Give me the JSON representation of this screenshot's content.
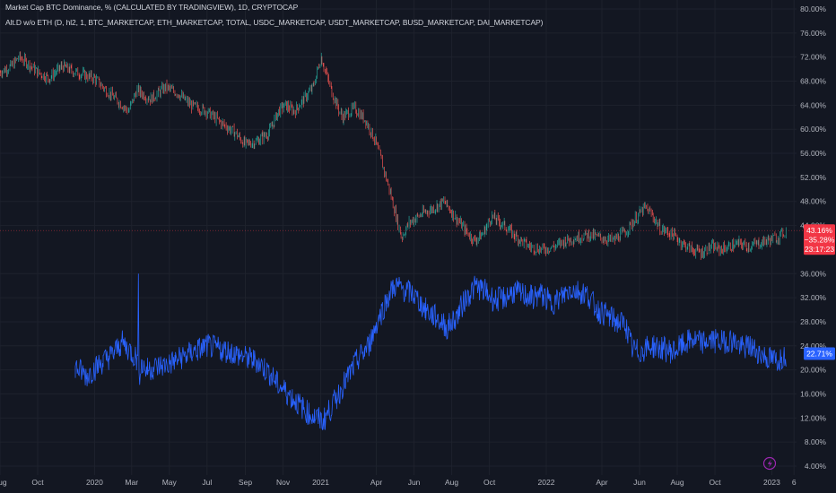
{
  "legend": {
    "line1": "Market Cap BTC Dominance, % (CALCULATED BY TRADINGVIEW), 1D, CRYPTOCAP",
    "line2": "Alt.D w/o ETH (D, hl2, 1, BTC_MARKETCAP, ETH_MARKETCAP, TOTAL, USDC_MARKETCAP, USDT_MARKETCAP, BUSD_MARKETCAP, DAI_MARKETCAP)"
  },
  "price_badge": {
    "value": "43.16%",
    "change": "−35.28%",
    "countdown": "23:17:23"
  },
  "indicator_badge": {
    "value": "22.71%"
  },
  "colors": {
    "background": "#131722",
    "grid": "#1e222d",
    "up_candle": "#26a69a",
    "down_candle": "#ef5350",
    "indicator": "#2962ff",
    "price_badge": "#f23645",
    "indicator_badge": "#2962ff",
    "axis_text": "#b2b5be",
    "lightning_icon": "#9c27b0"
  },
  "chart_data": [
    {
      "type": "candlestick",
      "name": "Market Cap BTC Dominance, %",
      "x_type": "date",
      "x_range": [
        "2019-08-01",
        "2023-02-10"
      ],
      "ylim": [
        4,
        80
      ],
      "y_unit": "%",
      "grid": true,
      "points": [
        [
          "2019-08-01",
          69.5
        ],
        [
          "2019-08-20",
          70.5
        ],
        [
          "2019-09-01",
          72.0
        ],
        [
          "2019-09-15",
          71.0
        ],
        [
          "2019-10-01",
          69.5
        ],
        [
          "2019-10-20",
          68.5
        ],
        [
          "2019-11-10",
          70.5
        ],
        [
          "2019-12-01",
          69.5
        ],
        [
          "2020-01-01",
          68.5
        ],
        [
          "2020-01-20",
          66.5
        ],
        [
          "2020-02-10",
          64.5
        ],
        [
          "2020-02-25",
          63.0
        ],
        [
          "2020-03-10",
          66.5
        ],
        [
          "2020-04-01",
          65.0
        ],
        [
          "2020-04-25",
          67.0
        ],
        [
          "2020-05-15",
          66.0
        ],
        [
          "2020-06-05",
          64.0
        ],
        [
          "2020-07-01",
          63.0
        ],
        [
          "2020-07-25",
          61.0
        ],
        [
          "2020-08-15",
          59.5
        ],
        [
          "2020-09-01",
          57.5
        ],
        [
          "2020-09-20",
          58.0
        ],
        [
          "2020-10-10",
          59.5
        ],
        [
          "2020-10-25",
          63.0
        ],
        [
          "2020-11-05",
          64.0
        ],
        [
          "2020-11-20",
          63.0
        ],
        [
          "2020-12-05",
          65.0
        ],
        [
          "2020-12-20",
          67.0
        ],
        [
          "2021-01-02",
          72.0
        ],
        [
          "2021-01-08",
          70.0
        ],
        [
          "2021-01-20",
          66.0
        ],
        [
          "2021-02-05",
          62.0
        ],
        [
          "2021-02-25",
          63.5
        ],
        [
          "2021-03-15",
          61.5
        ],
        [
          "2021-03-31",
          58.0
        ],
        [
          "2021-04-20",
          51.0
        ],
        [
          "2021-05-05",
          45.0
        ],
        [
          "2021-05-12",
          42.0
        ],
        [
          "2021-05-25",
          44.5
        ],
        [
          "2021-06-15",
          46.0
        ],
        [
          "2021-07-05",
          47.0
        ],
        [
          "2021-07-20",
          48.0
        ],
        [
          "2021-08-10",
          45.0
        ],
        [
          "2021-08-25",
          43.0
        ],
        [
          "2021-09-07",
          41.5
        ],
        [
          "2021-09-20",
          42.5
        ],
        [
          "2021-10-05",
          45.5
        ],
        [
          "2021-10-25",
          44.0
        ],
        [
          "2021-11-15",
          42.0
        ],
        [
          "2021-12-05",
          40.5
        ],
        [
          "2021-12-25",
          40.0
        ],
        [
          "2022-01-15",
          40.5
        ],
        [
          "2022-02-01",
          41.5
        ],
        [
          "2022-02-20",
          42.0
        ],
        [
          "2022-03-10",
          42.5
        ],
        [
          "2022-03-30",
          42.0
        ],
        [
          "2022-04-20",
          41.5
        ],
        [
          "2022-05-10",
          43.0
        ],
        [
          "2022-05-25",
          45.0
        ],
        [
          "2022-06-10",
          47.0
        ],
        [
          "2022-06-20",
          46.0
        ],
        [
          "2022-07-05",
          43.5
        ],
        [
          "2022-07-25",
          42.5
        ],
        [
          "2022-08-10",
          41.0
        ],
        [
          "2022-08-25",
          40.0
        ],
        [
          "2022-09-10",
          39.5
        ],
        [
          "2022-09-25",
          40.5
        ],
        [
          "2022-10-10",
          40.0
        ],
        [
          "2022-10-25",
          40.5
        ],
        [
          "2022-11-10",
          41.0
        ],
        [
          "2022-11-25",
          40.5
        ],
        [
          "2022-12-10",
          41.0
        ],
        [
          "2022-12-25",
          41.5
        ],
        [
          "2023-01-10",
          42.0
        ],
        [
          "2023-01-25",
          43.16
        ]
      ]
    },
    {
      "type": "line",
      "name": "Alt.D w/o ETH",
      "x_type": "date",
      "x_range": [
        "2019-08-01",
        "2023-02-10"
      ],
      "ylim": [
        4,
        80
      ],
      "y_unit": "%",
      "points": [
        [
          "2019-12-01",
          20.5
        ],
        [
          "2019-12-20",
          19.0
        ],
        [
          "2020-01-10",
          21.0
        ],
        [
          "2020-01-30",
          22.5
        ],
        [
          "2020-02-15",
          24.5
        ],
        [
          "2020-03-01",
          23.0
        ],
        [
          "2020-03-12",
          21.5
        ],
        [
          "2020-03-25",
          20.0
        ],
        [
          "2020-04-10",
          20.5
        ],
        [
          "2020-05-01",
          21.0
        ],
        [
          "2020-05-20",
          22.0
        ],
        [
          "2020-06-10",
          23.0
        ],
        [
          "2020-07-01",
          24.0
        ],
        [
          "2020-07-20",
          23.5
        ],
        [
          "2020-08-10",
          23.0
        ],
        [
          "2020-09-01",
          22.0
        ],
        [
          "2020-09-20",
          21.5
        ],
        [
          "2020-10-10",
          19.5
        ],
        [
          "2020-10-25",
          17.5
        ],
        [
          "2020-11-10",
          16.0
        ],
        [
          "2020-11-25",
          14.5
        ],
        [
          "2020-12-10",
          13.0
        ],
        [
          "2020-12-25",
          12.0
        ],
        [
          "2021-01-05",
          11.5
        ],
        [
          "2021-01-20",
          14.0
        ],
        [
          "2021-02-10",
          18.0
        ],
        [
          "2021-03-01",
          21.5
        ],
        [
          "2021-03-20",
          24.0
        ],
        [
          "2021-04-05",
          28.5
        ],
        [
          "2021-04-20",
          32.0
        ],
        [
          "2021-05-01",
          34.0
        ],
        [
          "2021-05-12",
          33.5
        ],
        [
          "2021-06-01",
          32.5
        ],
        [
          "2021-06-20",
          30.0
        ],
        [
          "2021-07-10",
          28.5
        ],
        [
          "2021-07-25",
          27.0
        ],
        [
          "2021-08-10",
          29.0
        ],
        [
          "2021-08-25",
          32.0
        ],
        [
          "2021-09-10",
          34.0
        ],
        [
          "2021-09-25",
          33.0
        ],
        [
          "2021-10-10",
          31.5
        ],
        [
          "2021-10-25",
          32.0
        ],
        [
          "2021-11-10",
          33.0
        ],
        [
          "2021-11-25",
          32.5
        ],
        [
          "2021-12-10",
          32.0
        ],
        [
          "2021-12-25",
          32.5
        ],
        [
          "2022-01-10",
          31.0
        ],
        [
          "2022-01-25",
          32.0
        ],
        [
          "2022-02-10",
          33.5
        ],
        [
          "2022-02-25",
          33.0
        ],
        [
          "2022-03-10",
          32.5
        ],
        [
          "2022-03-25",
          30.0
        ],
        [
          "2022-04-10",
          29.0
        ],
        [
          "2022-04-25",
          28.0
        ],
        [
          "2022-05-10",
          27.5
        ],
        [
          "2022-05-20",
          23.5
        ],
        [
          "2022-06-01",
          23.0
        ],
        [
          "2022-06-20",
          24.0
        ],
        [
          "2022-07-10",
          23.5
        ],
        [
          "2022-07-25",
          23.0
        ],
        [
          "2022-08-10",
          24.0
        ],
        [
          "2022-08-25",
          25.0
        ],
        [
          "2022-09-10",
          24.5
        ],
        [
          "2022-09-25",
          25.0
        ],
        [
          "2022-10-10",
          24.5
        ],
        [
          "2022-10-25",
          25.0
        ],
        [
          "2022-11-05",
          24.5
        ],
        [
          "2022-11-15",
          23.5
        ],
        [
          "2022-11-25",
          24.0
        ],
        [
          "2022-12-10",
          23.0
        ],
        [
          "2022-12-25",
          22.0
        ],
        [
          "2023-01-10",
          21.5
        ],
        [
          "2023-01-25",
          22.71
        ]
      ]
    }
  ],
  "axes": {
    "x_ticks": [
      {
        "label": "Aug",
        "date": "2019-08-01"
      },
      {
        "label": "Oct",
        "date": "2019-10-01"
      },
      {
        "label": "2020",
        "date": "2020-01-01"
      },
      {
        "label": "Mar",
        "date": "2020-03-01"
      },
      {
        "label": "May",
        "date": "2020-05-01"
      },
      {
        "label": "Jul",
        "date": "2020-07-01"
      },
      {
        "label": "Sep",
        "date": "2020-09-01"
      },
      {
        "label": "Nov",
        "date": "2020-11-01"
      },
      {
        "label": "2021",
        "date": "2021-01-01"
      },
      {
        "label": "Apr",
        "date": "2021-04-01"
      },
      {
        "label": "Jun",
        "date": "2021-06-01"
      },
      {
        "label": "Aug",
        "date": "2021-08-01"
      },
      {
        "label": "Oct",
        "date": "2021-10-01"
      },
      {
        "label": "2022",
        "date": "2022-01-01"
      },
      {
        "label": "Apr",
        "date": "2022-04-01"
      },
      {
        "label": "Jun",
        "date": "2022-06-01"
      },
      {
        "label": "Aug",
        "date": "2022-08-01"
      },
      {
        "label": "Oct",
        "date": "2022-10-01"
      },
      {
        "label": "2023",
        "date": "2023-01-01"
      },
      {
        "label": "6",
        "date": "2023-02-06"
      }
    ],
    "y_ticks": [
      {
        "label": "80.00%",
        "value": 80
      },
      {
        "label": "76.00%",
        "value": 76
      },
      {
        "label": "72.00%",
        "value": 72
      },
      {
        "label": "68.00%",
        "value": 68
      },
      {
        "label": "64.00%",
        "value": 64
      },
      {
        "label": "60.00%",
        "value": 60
      },
      {
        "label": "56.00%",
        "value": 56
      },
      {
        "label": "52.00%",
        "value": 52
      },
      {
        "label": "48.00%",
        "value": 48
      },
      {
        "label": "44.00%",
        "value": 44
      },
      {
        "label": "36.00%",
        "value": 36
      },
      {
        "label": "32.00%",
        "value": 32
      },
      {
        "label": "28.00%",
        "value": 28
      },
      {
        "label": "24.00%",
        "value": 24
      },
      {
        "label": "20.00%",
        "value": 20
      },
      {
        "label": "16.00%",
        "value": 16
      },
      {
        "label": "12.00%",
        "value": 12
      },
      {
        "label": "8.00%",
        "value": 8
      },
      {
        "label": "4.00%",
        "value": 4
      }
    ]
  }
}
